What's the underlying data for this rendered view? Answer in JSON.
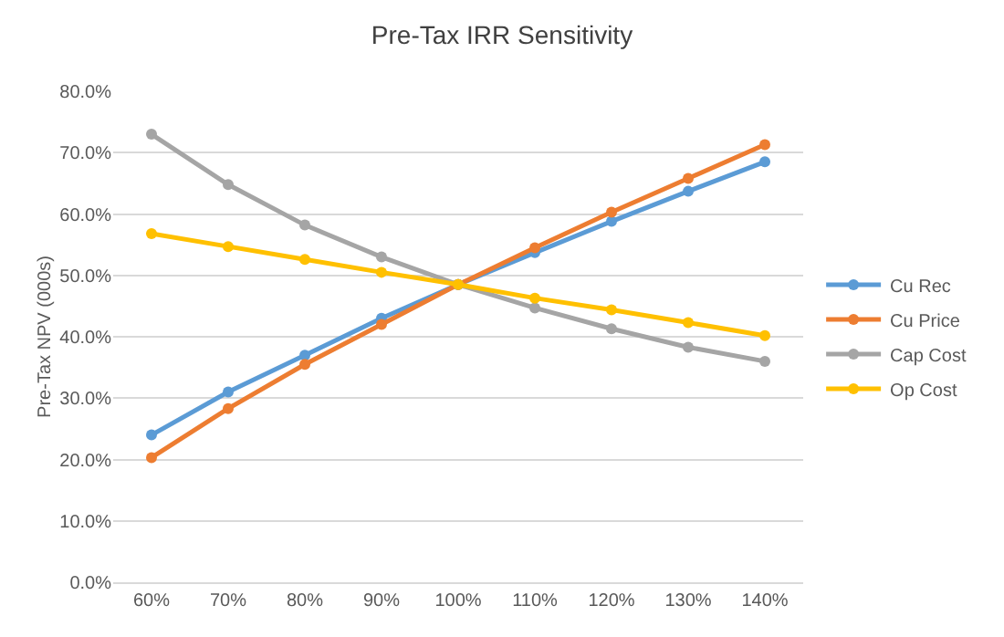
{
  "chart_data": {
    "type": "line",
    "title": "Pre-Tax IRR Sensitivity",
    "ylabel": "Pre-Tax NPV (000s)",
    "categories": [
      "60%",
      "70%",
      "80%",
      "90%",
      "100%",
      "110%",
      "120%",
      "130%",
      "140%"
    ],
    "series": [
      {
        "name": "Cu Rec",
        "color": "#5b9bd5",
        "values": [
          24,
          31,
          37,
          43,
          48.5,
          53.7,
          58.8,
          63.7,
          68.5
        ]
      },
      {
        "name": "Cu Price",
        "color": "#ed7d31",
        "values": [
          20.3,
          28.3,
          35.5,
          42,
          48.5,
          54.5,
          60.3,
          65.8,
          71.3
        ]
      },
      {
        "name": "Cap Cost",
        "color": "#a5a5a5",
        "values": [
          73,
          64.8,
          58.2,
          53,
          48.5,
          44.7,
          41.3,
          38.3,
          36
        ]
      },
      {
        "name": "Op Cost",
        "color": "#ffc000",
        "values": [
          56.8,
          54.7,
          52.6,
          50.5,
          48.5,
          46.3,
          44.4,
          42.3,
          40.2
        ]
      }
    ],
    "ylim": [
      0,
      80
    ],
    "yticks": [
      {
        "value": 0,
        "label": "0.0%"
      },
      {
        "value": 10,
        "label": "10.0%"
      },
      {
        "value": 20,
        "label": "20.0%"
      },
      {
        "value": 30,
        "label": "30.0%"
      },
      {
        "value": 40,
        "label": "40.0%"
      },
      {
        "value": 50,
        "label": "50.0%"
      },
      {
        "value": 60,
        "label": "60.0%"
      },
      {
        "value": 70,
        "label": "70.0%"
      },
      {
        "value": 80,
        "label": "80.0%"
      }
    ],
    "grid": "y",
    "legend": "right",
    "marker": "circle",
    "line_style": "solid"
  }
}
